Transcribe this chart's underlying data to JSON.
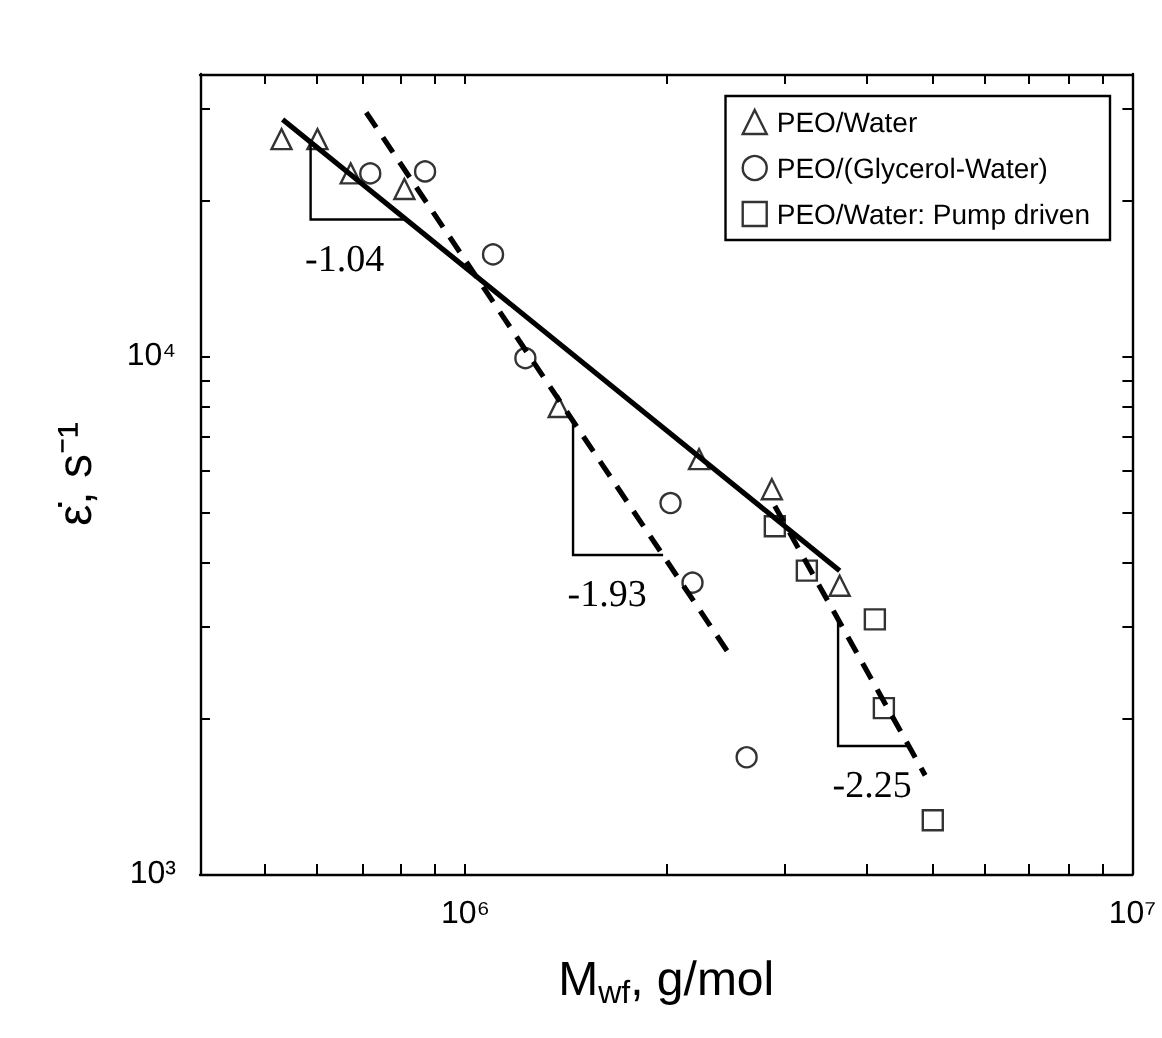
{
  "chart_data": {
    "type": "scatter",
    "xlabel": "M$_{wf}$, g/mol",
    "ylabel": "ε̇, s⁻¹",
    "log": "xy",
    "legend": "top right",
    "xlim": [
      400000,
      10000000
    ],
    "ylim": [
      1000,
      35000
    ],
    "xticks": [
      {
        "value": 500000,
        "label": null
      },
      {
        "value": 600000,
        "label": null
      },
      {
        "value": 700000,
        "label": null
      },
      {
        "value": 800000,
        "label": null
      },
      {
        "value": 900000,
        "label": null
      },
      {
        "value": 1000000,
        "label": "10⁶"
      },
      {
        "value": 2000000,
        "label": null
      },
      {
        "value": 3000000,
        "label": null
      },
      {
        "value": 4000000,
        "label": null
      },
      {
        "value": 5000000,
        "label": null
      },
      {
        "value": 6000000,
        "label": null
      },
      {
        "value": 7000000,
        "label": null
      },
      {
        "value": 8000000,
        "label": null
      },
      {
        "value": 9000000,
        "label": null
      },
      {
        "value": 10000000,
        "label": "10⁷"
      }
    ],
    "yticks": [
      {
        "value": 1000,
        "label": "10³"
      },
      {
        "value": 2000,
        "label": null
      },
      {
        "value": 3000,
        "label": null
      },
      {
        "value": 4000,
        "label": null
      },
      {
        "value": 5000,
        "label": null
      },
      {
        "value": 6000,
        "label": null
      },
      {
        "value": 7000,
        "label": null
      },
      {
        "value": 8000,
        "label": null
      },
      {
        "value": 9000,
        "label": null
      },
      {
        "value": 10000,
        "label": "10⁴"
      },
      {
        "value": 20000,
        "label": null
      },
      {
        "value": 30000,
        "label": null
      }
    ],
    "series": [
      {
        "name": "PEO/Water",
        "color": "#000000",
        "marker": "triangle",
        "x": [
          530000,
          600000,
          673000,
          810000,
          1380000,
          2240000,
          2880000,
          3640000
        ],
        "values": [
          26200,
          26200,
          22500,
          21000,
          7970,
          6320,
          5530,
          3600
        ]
      },
      {
        "name": "PEO/(Glycerol-Water)",
        "color": "#000000",
        "marker": "circle",
        "x": [
          720000,
          870000,
          1100000,
          1230000,
          2030000,
          2190000,
          2640000
        ],
        "values": [
          22500,
          22700,
          15700,
          9900,
          5200,
          3650,
          1680
        ]
      },
      {
        "name": "PEO/Water: Pump driven",
        "color": "#000000",
        "marker": "square",
        "x": [
          2910000,
          3250000,
          4110000,
          4240000,
          5020000
        ],
        "values": [
          4690,
          3850,
          3100,
          2090,
          1270
        ]
      },
      {
        "type": "line",
        "color": "#000000",
        "marker": "none",
        "line_style": "solid",
        "x": [
          532000,
          3640000
        ],
        "values": [
          28600,
          3850
        ]
      },
      {
        "type": "line",
        "color": "#000000",
        "marker": "none",
        "line_style": "dashed",
        "x": [
          710000,
          2480000
        ],
        "values": [
          29500,
          2670
        ]
      },
      {
        "type": "line",
        "color": "#000000",
        "marker": "none",
        "line_style": "dashed",
        "x": [
          2910000,
          4890000
        ],
        "values": [
          5130,
          1550
        ]
      }
    ],
    "annotations": [
      {
        "text": "-1.04",
        "x": 586000,
        "y": 25900
      },
      {
        "text": "-1.93",
        "x": 1450000,
        "y": 7500
      },
      {
        "text": "-2.25",
        "x": 3620000,
        "y": 3100
      }
    ]
  }
}
